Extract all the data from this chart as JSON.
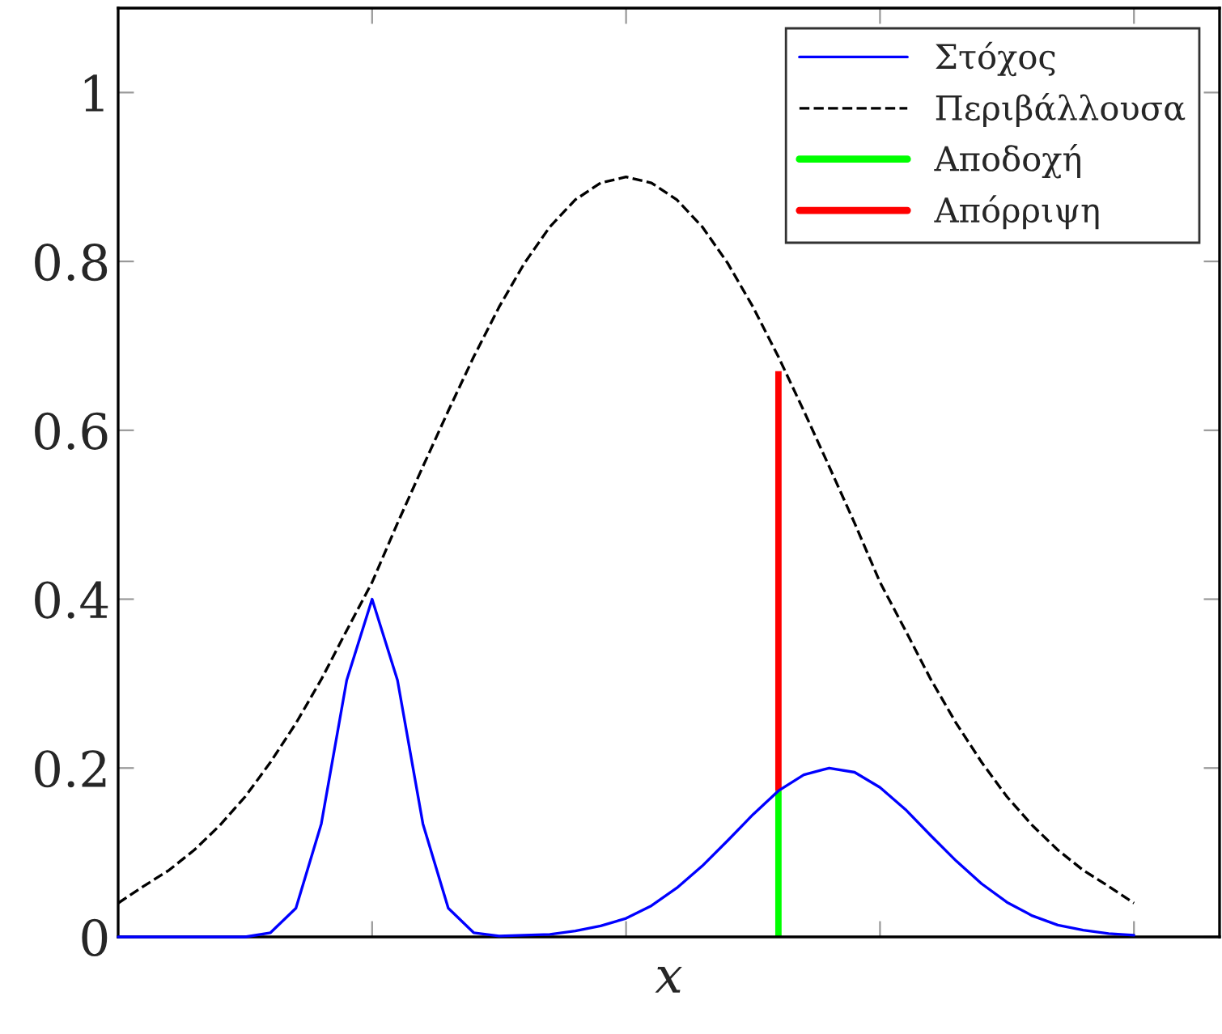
{
  "chart_data": {
    "type": "line",
    "xlabel": "x",
    "categories": [
      null,
      null,
      null,
      null,
      null,
      null,
      null,
      null,
      null,
      null,
      null,
      null,
      null,
      null,
      null,
      null,
      null,
      null,
      null,
      null,
      null,
      null,
      null,
      null,
      null,
      null,
      null,
      null,
      null,
      null,
      null,
      null,
      null,
      null,
      null,
      null,
      null,
      null,
      null,
      null,
      null
    ],
    "ylim": [
      0,
      1.1
    ],
    "yticks": [
      0,
      0.2,
      0.4,
      0.6,
      0.8,
      1
    ],
    "tick_labels": "y",
    "legend": "top right",
    "stacked": true,
    "series": [
      {
        "name": "Στόχος",
        "color": "#0000ff",
        "line_style": "solid",
        "values": [
          0,
          0,
          0,
          0,
          0,
          0,
          0.005,
          0.034,
          0.134,
          0.304,
          0.4,
          0.304,
          0.134,
          0.034,
          0.005,
          0.001,
          0.002,
          0.003,
          0.007,
          0.013,
          0.022,
          0.037,
          0.058,
          0.084,
          0.114,
          0.145,
          0.173,
          0.192,
          0.2,
          0.195,
          0.177,
          0.151,
          0.12,
          0.09,
          0.063,
          0.041,
          0.025,
          0.014,
          0.008,
          0.004,
          0.002
        ]
      },
      {
        "name": "Περιβάλλουσα",
        "color": "#000000",
        "line_style": "dashed",
        "values": [
          0.04,
          0.06,
          0.079,
          0.103,
          0.132,
          0.166,
          0.207,
          0.253,
          0.305,
          0.363,
          0.42,
          0.49,
          0.557,
          0.623,
          0.687,
          0.746,
          0.798,
          0.841,
          0.873,
          0.893,
          0.9,
          0.893,
          0.873,
          0.841,
          0.798,
          0.746,
          0.687,
          0.623,
          0.557,
          0.49,
          0.42,
          0.363,
          0.305,
          0.253,
          0.207,
          0.166,
          0.132,
          0.103,
          0.079,
          0.06,
          0.04
        ]
      },
      {
        "name": "Αποδοχή",
        "color": "#00ff00",
        "type": "bar",
        "values": [
          null,
          null,
          null,
          null,
          null,
          null,
          null,
          null,
          null,
          null,
          null,
          null,
          null,
          null,
          null,
          null,
          null,
          null,
          null,
          null,
          null,
          null,
          null,
          null,
          null,
          null,
          0.173,
          null,
          null,
          null,
          null,
          null,
          null,
          null,
          null,
          null,
          null,
          null,
          null,
          null,
          null
        ]
      },
      {
        "name": "Απόρριψη",
        "color": "#ff0000",
        "type": "bar",
        "values": [
          null,
          null,
          null,
          null,
          null,
          null,
          null,
          null,
          null,
          null,
          null,
          null,
          null,
          null,
          null,
          null,
          null,
          null,
          null,
          null,
          null,
          null,
          null,
          null,
          null,
          null,
          0.497,
          null,
          null,
          null,
          null,
          null,
          null,
          null,
          null,
          null,
          null,
          null,
          null,
          null,
          null
        ]
      }
    ]
  }
}
